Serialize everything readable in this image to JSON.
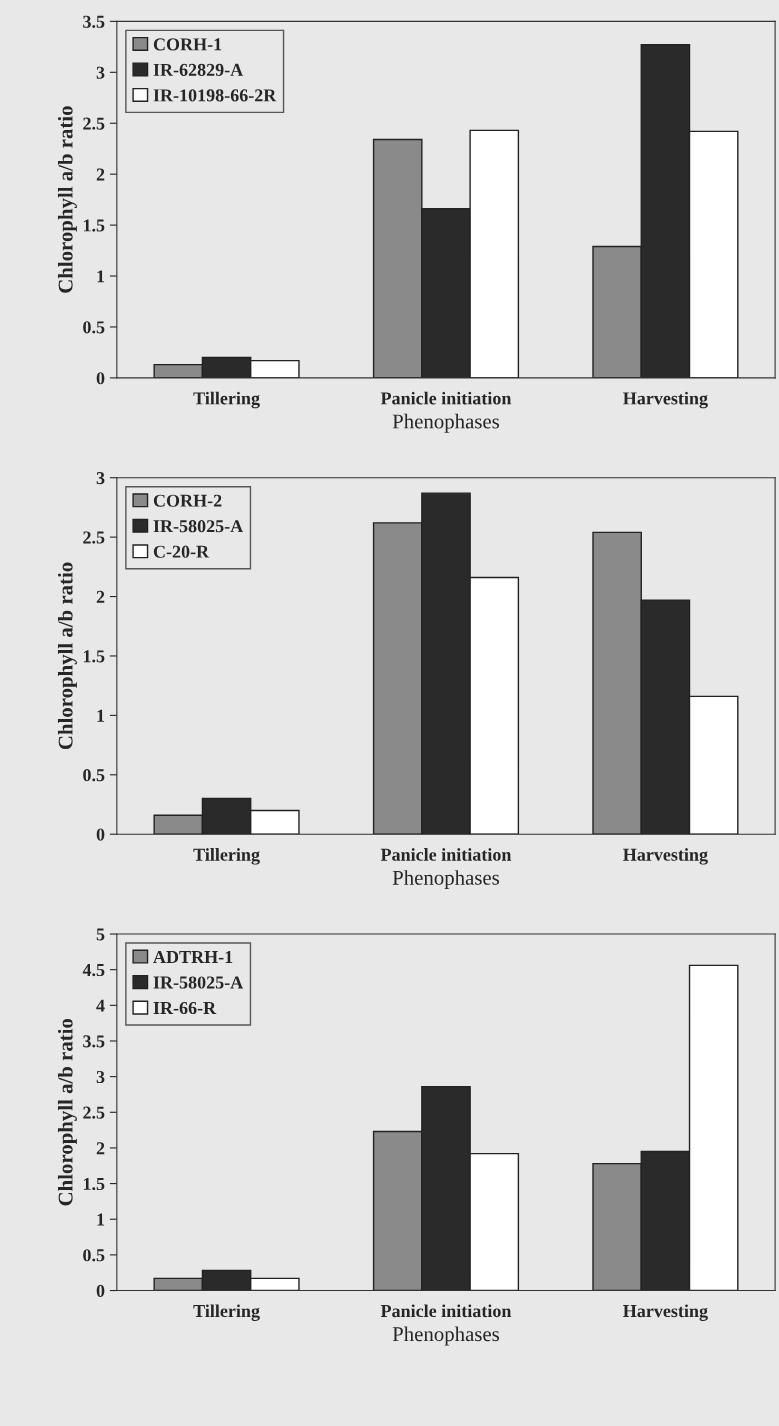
{
  "chart_data": [
    {
      "type": "bar",
      "xlabel": "Phenophases",
      "ylabel": "Chlorophyll a/b ratio",
      "categories": [
        "Tillering",
        "Panicle initiation",
        "Harvesting"
      ],
      "series": [
        {
          "name": "CORH-1",
          "color": "#8a8a8a",
          "values": [
            0.13,
            2.34,
            1.29
          ]
        },
        {
          "name": "IR-62829-A",
          "color": "#2a2a2a",
          "values": [
            0.2,
            1.66,
            3.27
          ]
        },
        {
          "name": "IR-10198-66-2R",
          "color": "#ffffff",
          "values": [
            0.17,
            2.43,
            2.42
          ]
        }
      ],
      "ylim": [
        0,
        3.5
      ],
      "yticks": [
        0,
        0.5,
        1,
        1.5,
        2,
        2.5,
        3,
        3.5
      ],
      "legend": "top left"
    },
    {
      "type": "bar",
      "xlabel": "Phenophases",
      "ylabel": "Chlorophyll a/b ratio",
      "categories": [
        "Tillering",
        "Panicle initiation",
        "Harvesting"
      ],
      "series": [
        {
          "name": "CORH-2",
          "color": "#8a8a8a",
          "values": [
            0.16,
            2.62,
            2.54
          ]
        },
        {
          "name": "IR-58025-A",
          "color": "#2a2a2a",
          "values": [
            0.3,
            2.87,
            1.97
          ]
        },
        {
          "name": "C-20-R",
          "color": "#ffffff",
          "values": [
            0.2,
            2.16,
            1.16
          ]
        }
      ],
      "ylim": [
        0,
        3
      ],
      "yticks": [
        0,
        0.5,
        1,
        1.5,
        2,
        2.5,
        3
      ],
      "legend": "top left"
    },
    {
      "type": "bar",
      "xlabel": "Phenophases",
      "ylabel": "Chlorophyll a/b ratio",
      "categories": [
        "Tillering",
        "Panicle initiation",
        "Harvesting"
      ],
      "series": [
        {
          "name": "ADTRH-1",
          "color": "#8a8a8a",
          "values": [
            0.17,
            2.23,
            1.78
          ]
        },
        {
          "name": "IR-58025-A",
          "color": "#2a2a2a",
          "values": [
            0.28,
            2.86,
            1.95
          ]
        },
        {
          "name": "IR-66-R",
          "color": "#ffffff",
          "values": [
            0.17,
            1.92,
            4.56
          ]
        }
      ],
      "ylim": [
        0,
        5
      ],
      "yticks": [
        0,
        0.5,
        1,
        1.5,
        2,
        2.5,
        3,
        3.5,
        4,
        4.5,
        5
      ],
      "legend": "top left"
    }
  ]
}
